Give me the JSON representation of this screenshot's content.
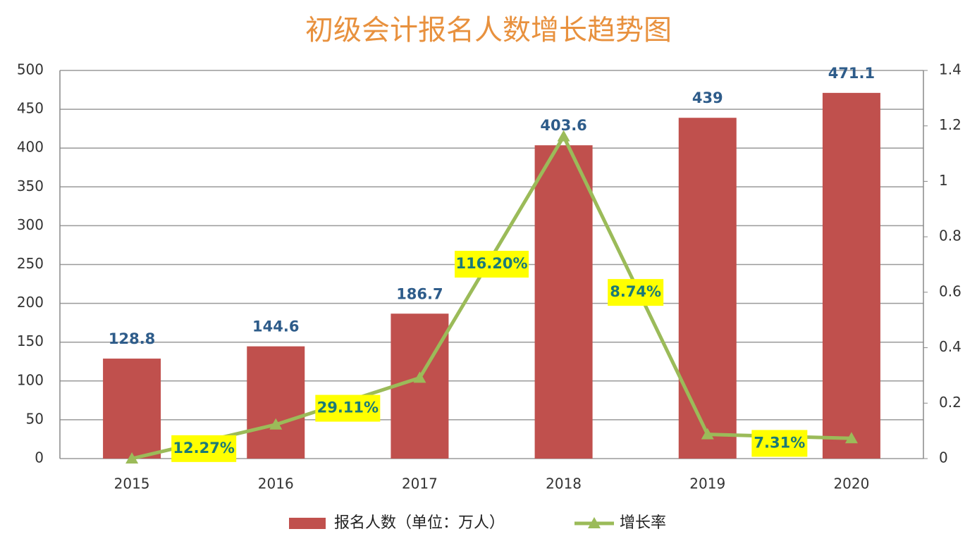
{
  "chart_data": {
    "type": "bar_line",
    "title": "初级会计报名人数增长趋势图",
    "categories": [
      "2015",
      "2016",
      "2017",
      "2018",
      "2019",
      "2020"
    ],
    "series": [
      {
        "name": "报名人数（单位：万人）",
        "type": "bar",
        "color": "#c0504d",
        "values": [
          128.8,
          144.6,
          186.7,
          403.6,
          439,
          471.1
        ]
      },
      {
        "name": "增长率",
        "type": "line",
        "axis": "y2",
        "color": "#9bbb59",
        "values": [
          0,
          0.1227,
          0.2911,
          1.162,
          0.0874,
          0.0731
        ],
        "value_labels": [
          null,
          "12.27%",
          "29.11%",
          "116.20%",
          "8.74%",
          "7.31%"
        ]
      }
    ],
    "ylim": [
      0,
      500
    ],
    "yticks": [
      0,
      50,
      100,
      150,
      200,
      250,
      300,
      350,
      400,
      450,
      500
    ],
    "y2lim": [
      0,
      1.4
    ],
    "y2ticks": [
      0,
      0.2,
      0.4,
      0.6,
      0.8,
      1,
      1.2,
      1.4
    ],
    "grid": true,
    "legend": "bottom"
  }
}
